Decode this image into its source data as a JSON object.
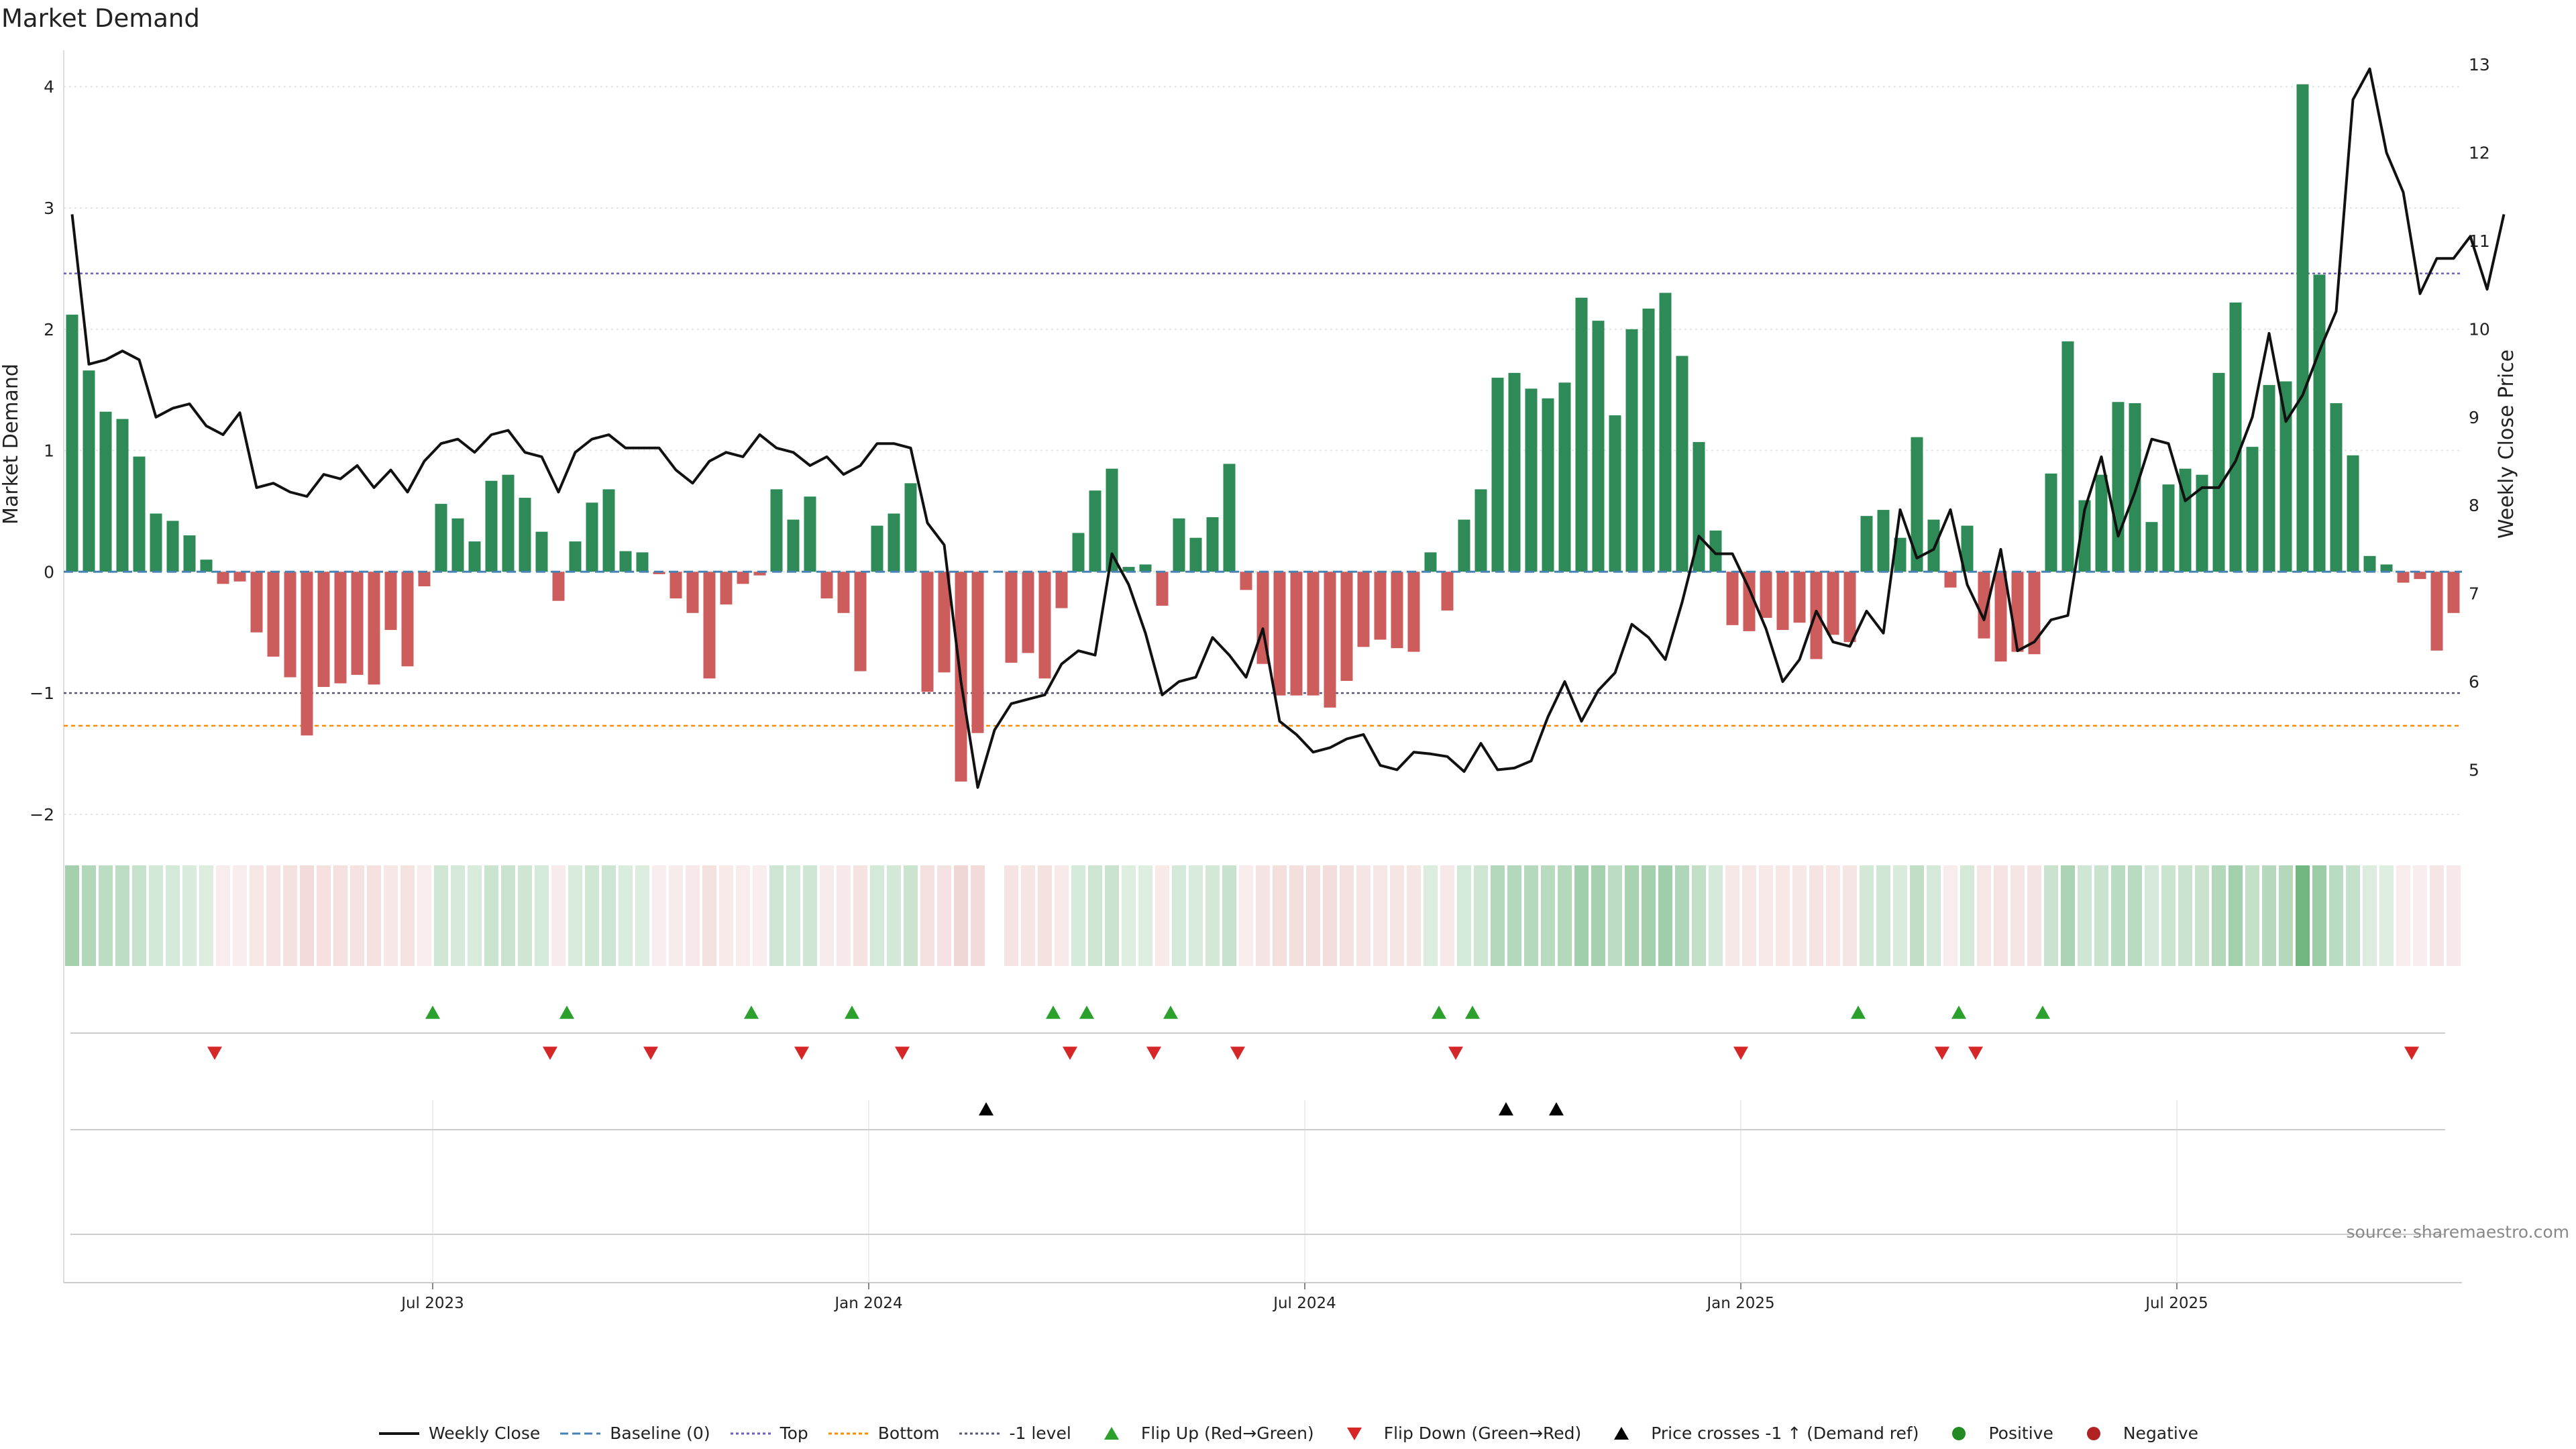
{
  "title": "Market Demand",
  "source": "source: sharemaestro.com",
  "colors": {
    "positive_bar": "#2e8b57",
    "negative_bar": "#cd5c5c",
    "price_line": "#111111",
    "baseline": "#4682b4",
    "top_line": "#6a5acd",
    "bottom_line": "#ff8c00",
    "minus1_line": "#555577",
    "flip_up": "#2ca02c",
    "flip_down": "#d62728",
    "cross": "#000000",
    "positive_dot": "#228b22",
    "negative_dot": "#b22222"
  },
  "legend": [
    {
      "key": "weekly_close",
      "label": "Weekly Close"
    },
    {
      "key": "baseline",
      "label": "Baseline (0)"
    },
    {
      "key": "top",
      "label": "Top"
    },
    {
      "key": "bottom",
      "label": "Bottom"
    },
    {
      "key": "minus1",
      "label": "-1 level"
    },
    {
      "key": "flip_up",
      "label": "Flip Up (Red→Green)"
    },
    {
      "key": "flip_down",
      "label": "Flip Down (Green→Red)"
    },
    {
      "key": "cross",
      "label": "Price crosses -1 ↑ (Demand ref)"
    },
    {
      "key": "positive",
      "label": "Positive"
    },
    {
      "key": "negative",
      "label": "Negative"
    }
  ],
  "chart_data": {
    "type": "bar",
    "title": "Market Demand",
    "ylabel": "Market Demand",
    "y2label": "Weekly Close Price",
    "ylim": [
      -2.2,
      4.3
    ],
    "y2lim": [
      4.22,
      13.16
    ],
    "yticks": [
      4,
      3,
      2,
      1,
      0,
      -1,
      -2
    ],
    "y2ticks": [
      13,
      12,
      11,
      10,
      9,
      8,
      7,
      6,
      5
    ],
    "xticks": [
      {
        "week": 22,
        "label": "Jul 2023"
      },
      {
        "week": 48,
        "label": "Jan 2024"
      },
      {
        "week": 74,
        "label": "Jul 2024"
      },
      {
        "week": 100,
        "label": "Jan 2025"
      },
      {
        "week": 126,
        "label": "Jul 2025"
      }
    ],
    "levels": {
      "baseline": 0,
      "top": 2.46,
      "bottom": -1.27,
      "minus1": -1.0
    },
    "demand": [
      2.12,
      1.66,
      1.32,
      1.26,
      0.95,
      0.48,
      0.42,
      0.3,
      0.1,
      -0.1,
      -0.08,
      -0.5,
      -0.7,
      -0.87,
      -1.35,
      -0.95,
      -0.92,
      -0.85,
      -0.93,
      -0.48,
      -0.78,
      -0.12,
      0.56,
      0.44,
      0.25,
      0.75,
      0.8,
      0.61,
      0.33,
      -0.24,
      0.25,
      0.57,
      0.68,
      0.17,
      0.16,
      -0.02,
      -0.22,
      -0.34,
      -0.88,
      -0.27,
      -0.1,
      -0.03,
      0.68,
      0.43,
      0.62,
      -0.22,
      -0.34,
      -0.82,
      0.38,
      0.48,
      0.73,
      -0.99,
      -0.83,
      -1.73,
      -1.33,
      0,
      -0.75,
      -0.67,
      -0.88,
      -0.3,
      0.32,
      0.67,
      0.85,
      0.04,
      0.06,
      -0.28,
      0.44,
      0.28,
      0.45,
      0.89,
      -0.15,
      -0.76,
      -1.02,
      -1.02,
      -1.02,
      -1.12,
      -0.9,
      -0.62,
      -0.56,
      -0.63,
      -0.66,
      0.16,
      -0.32,
      0.43,
      0.68,
      1.6,
      1.64,
      1.51,
      1.43,
      1.56,
      2.26,
      2.07,
      1.29,
      2.0,
      2.17,
      2.3,
      1.78,
      1.07,
      0.34,
      -0.44,
      -0.49,
      -0.38,
      -0.48,
      -0.42,
      -0.72,
      -0.52,
      -0.58,
      0.46,
      0.51,
      0.28,
      1.11,
      0.43,
      -0.13,
      0.38,
      -0.55,
      -0.74,
      -0.66,
      -0.68,
      0.81,
      1.9,
      0.59,
      0.8,
      1.4,
      1.39,
      0.41,
      0.72,
      0.85,
      0.8,
      1.64,
      2.22,
      1.03,
      1.54,
      1.57,
      4.02,
      2.45,
      1.39,
      0.96,
      0.13,
      0.06,
      -0.09,
      -0.06,
      -0.65,
      -0.34
    ],
    "weekly_close": [
      11.3,
      9.6,
      9.65,
      9.75,
      9.65,
      9.0,
      9.1,
      9.15,
      8.9,
      8.8,
      9.05,
      8.2,
      8.25,
      8.15,
      8.1,
      8.35,
      8.3,
      8.45,
      8.2,
      8.4,
      8.15,
      8.5,
      8.7,
      8.75,
      8.6,
      8.8,
      8.85,
      8.6,
      8.55,
      8.15,
      8.6,
      8.75,
      8.8,
      8.65,
      8.65,
      8.65,
      8.4,
      8.25,
      8.5,
      8.6,
      8.55,
      8.8,
      8.65,
      8.6,
      8.45,
      8.55,
      8.35,
      8.45,
      8.7,
      8.7,
      8.65,
      7.8,
      7.55,
      6.0,
      4.8,
      5.45,
      5.75,
      5.8,
      5.85,
      6.2,
      6.35,
      6.3,
      7.45,
      7.1,
      6.55,
      5.85,
      6.0,
      6.05,
      6.5,
      6.3,
      6.05,
      6.6,
      5.55,
      5.4,
      5.2,
      5.25,
      5.35,
      5.4,
      5.05,
      5.0,
      5.2,
      5.18,
      5.15,
      4.98,
      5.3,
      5.0,
      5.02,
      5.1,
      5.6,
      6.0,
      5.55,
      5.9,
      6.1,
      6.65,
      6.5,
      6.25,
      6.9,
      7.65,
      7.45,
      7.45,
      7.05,
      6.6,
      6.0,
      6.25,
      6.8,
      6.45,
      6.4,
      6.8,
      6.55,
      7.95,
      7.4,
      7.5,
      7.95,
      7.1,
      6.7,
      7.5,
      6.35,
      6.45,
      6.7,
      6.75,
      7.95,
      8.55,
      7.65,
      8.15,
      8.75,
      8.7,
      8.05,
      8.2,
      8.2,
      8.5,
      9.0,
      9.95,
      8.95,
      9.25,
      9.75,
      10.2,
      12.6,
      12.95,
      12.0,
      11.55,
      10.4,
      10.8,
      10.8,
      11.05,
      10.45,
      11.3
    ],
    "flip_up_weeks": [
      22,
      30,
      41,
      47,
      59,
      61,
      66,
      82,
      84,
      107,
      113,
      118
    ],
    "flip_down_weeks": [
      9,
      29,
      35,
      44,
      50,
      60,
      65,
      70,
      83,
      100,
      112,
      114,
      140
    ],
    "price_cross_weeks": [
      55,
      86,
      89
    ]
  }
}
